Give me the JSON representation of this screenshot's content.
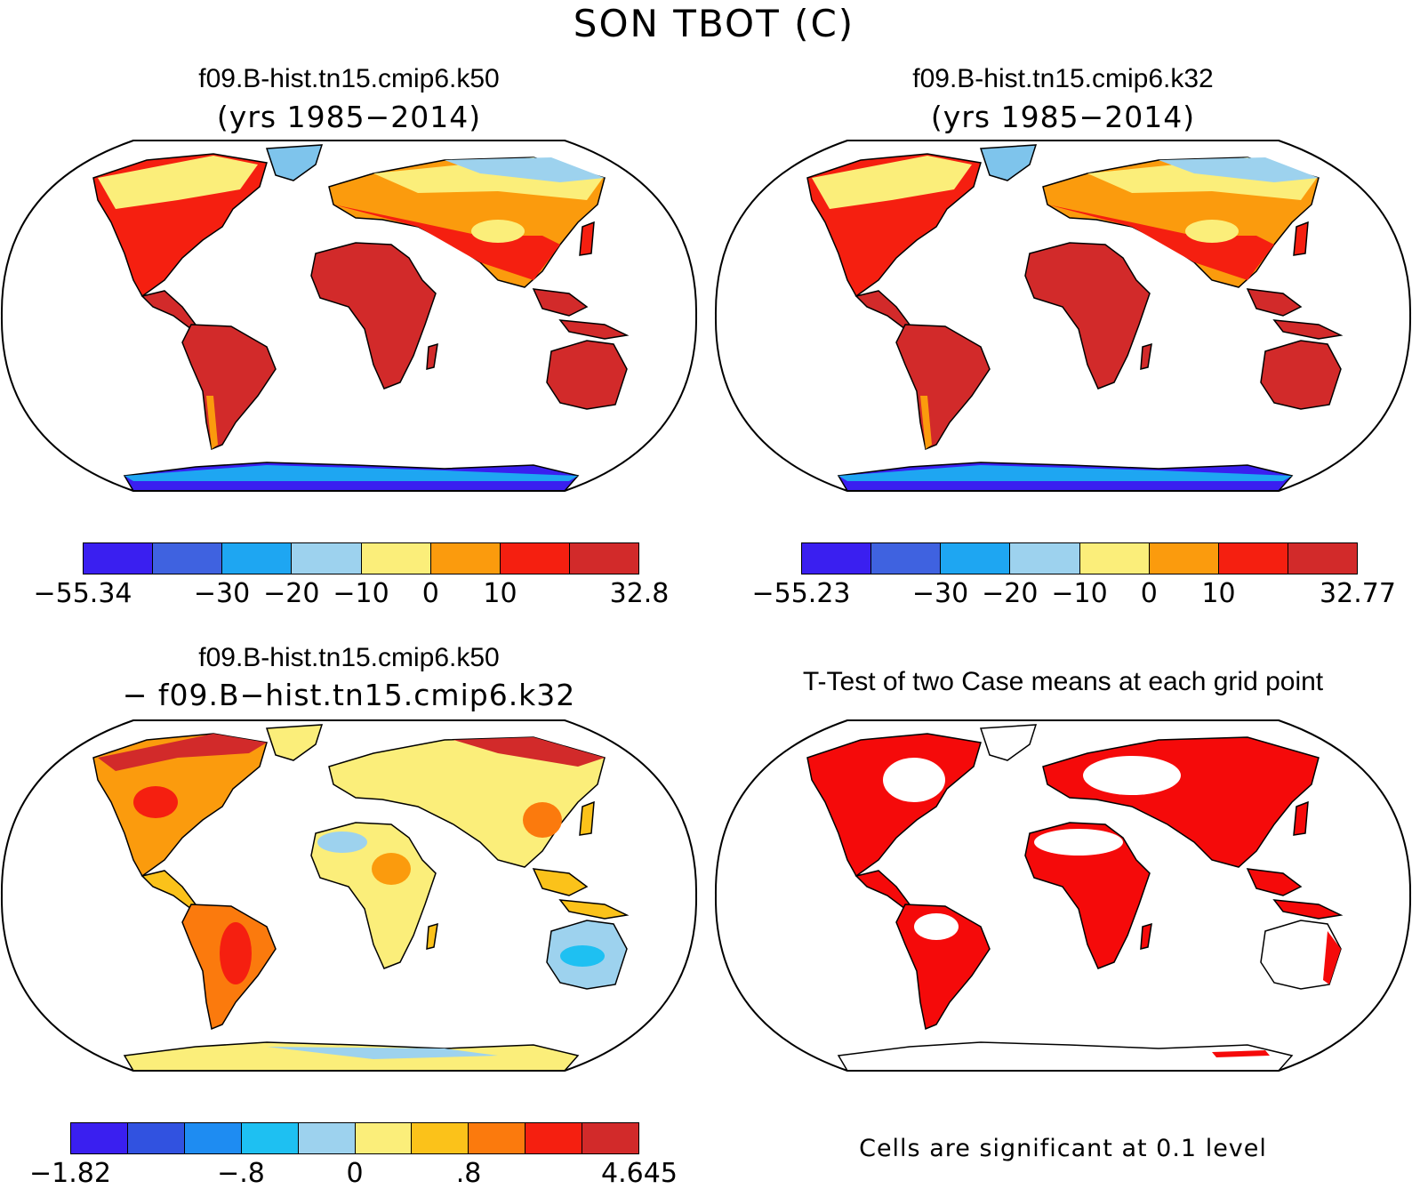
{
  "title": "SON TBOT (C)",
  "panels": [
    {
      "id": "k50",
      "title": "f09.B-hist.tn15.cmip6.k50",
      "subtitle": "(yrs 1985−2014)",
      "colorbar": {
        "colors": [
          "#3a1ff0",
          "#3f62e0",
          "#1ea6f2",
          "#9dd2ee",
          "#fbee7a",
          "#fb9b0d",
          "#f51f10",
          "#d22a2a"
        ],
        "ticks": [
          "−55.34",
          "−30",
          "−20",
          "−10",
          "0",
          "10",
          "32.8"
        ]
      }
    },
    {
      "id": "k32",
      "title": "f09.B-hist.tn15.cmip6.k32",
      "subtitle": "(yrs 1985−2014)",
      "colorbar": {
        "colors": [
          "#3a1ff0",
          "#3f62e0",
          "#1ea6f2",
          "#9dd2ee",
          "#fbee7a",
          "#fb9b0d",
          "#f51f10",
          "#d22a2a"
        ],
        "ticks": [
          "−55.23",
          "−30",
          "−20",
          "−10",
          "0",
          "10",
          "32.77"
        ]
      }
    },
    {
      "id": "diff",
      "title": "f09.B-hist.tn15.cmip6.k50",
      "subtitle": "− f09.B−hist.tn15.cmip6.k32",
      "colorbar": {
        "colors": [
          "#3a1ff0",
          "#3152e0",
          "#1e8cf2",
          "#1ec0f2",
          "#9dd2ee",
          "#fbee7a",
          "#fbc21a",
          "#fb7a0d",
          "#f51f10",
          "#d22a2a"
        ],
        "ticks": [
          "−1.82",
          "−.8",
          "0",
          ".8",
          "4.645"
        ]
      }
    },
    {
      "id": "ttest",
      "title": "T-Test of two Case means at each grid point",
      "note": "Cells are significant at 0.1 level"
    }
  ]
}
